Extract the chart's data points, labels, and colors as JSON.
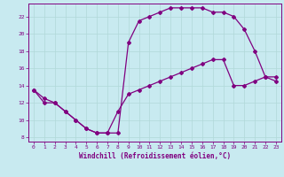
{
  "title": "",
  "xlabel": "Windchill (Refroidissement éolien,°C)",
  "ylabel": "",
  "bg_color": "#c8eaf0",
  "line_color": "#800080",
  "grid_color": "#b0d8d8",
  "xlim": [
    -0.5,
    23.5
  ],
  "ylim": [
    7.5,
    23.5
  ],
  "yticks": [
    8,
    10,
    12,
    14,
    16,
    18,
    20,
    22
  ],
  "xticks": [
    0,
    1,
    2,
    3,
    4,
    5,
    6,
    7,
    8,
    9,
    10,
    11,
    12,
    13,
    14,
    15,
    16,
    17,
    18,
    19,
    20,
    21,
    22,
    23
  ],
  "series1_x": [
    0,
    1,
    2,
    3,
    4,
    5,
    6,
    7,
    8,
    9,
    10,
    11,
    12,
    13,
    14,
    15,
    16,
    17,
    18,
    19,
    20,
    21,
    22,
    23
  ],
  "series1_y": [
    13.5,
    12.5,
    12.0,
    11.0,
    10.0,
    9.0,
    8.5,
    8.5,
    8.5,
    19.0,
    21.5,
    22.0,
    22.5,
    23.0,
    23.0,
    23.0,
    23.0,
    22.5,
    22.5,
    22.0,
    20.5,
    18.0,
    15.0,
    14.5
  ],
  "series2_x": [
    0,
    1,
    2,
    3,
    4,
    5,
    6,
    7,
    8,
    9,
    10,
    11,
    12,
    13,
    14,
    15,
    16,
    17,
    18,
    19,
    20,
    21,
    22,
    23
  ],
  "series2_y": [
    13.5,
    12.0,
    12.0,
    11.0,
    10.0,
    9.0,
    8.5,
    8.5,
    11.0,
    13.0,
    13.5,
    14.0,
    14.5,
    15.0,
    15.5,
    16.0,
    16.5,
    17.0,
    17.0,
    14.0,
    14.0,
    14.5,
    15.0,
    15.0
  ],
  "marker": "D",
  "markersize": 2.0,
  "linewidth": 0.9
}
